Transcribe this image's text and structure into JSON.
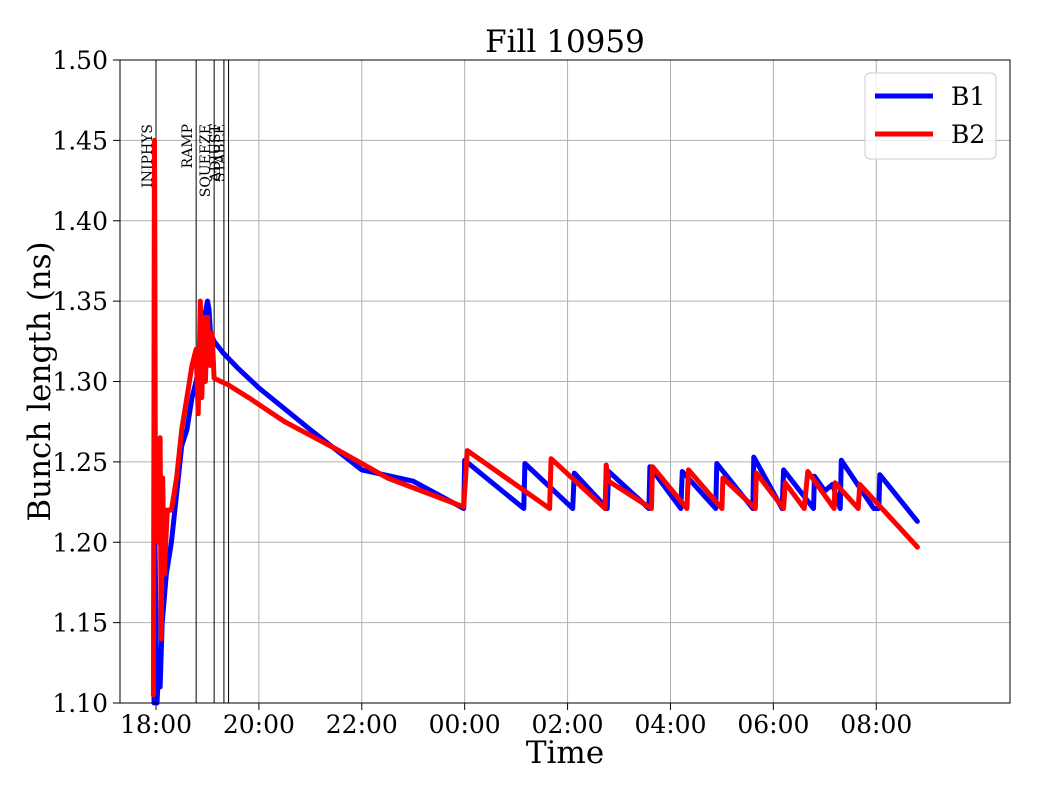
{
  "chart_data": {
    "type": "line",
    "title": "Fill 10959",
    "xlabel": "Time",
    "ylabel": "Bunch length (ns)",
    "x_unit": "hours (axis shows clock time starting 18:00, wrapping past midnight)",
    "xlim": [
      17.3,
      34.6
    ],
    "ylim": [
      1.1,
      1.5
    ],
    "x_ticks": [
      {
        "value": 18,
        "label": "18:00"
      },
      {
        "value": 20,
        "label": "20:00"
      },
      {
        "value": 22,
        "label": "22:00"
      },
      {
        "value": 24,
        "label": "00:00"
      },
      {
        "value": 26,
        "label": "02:00"
      },
      {
        "value": 28,
        "label": "04:00"
      },
      {
        "value": 30,
        "label": "06:00"
      },
      {
        "value": 32,
        "label": "08:00"
      }
    ],
    "y_ticks": [
      {
        "value": 1.1,
        "label": "1.10"
      },
      {
        "value": 1.15,
        "label": "1.15"
      },
      {
        "value": 1.2,
        "label": "1.20"
      },
      {
        "value": 1.25,
        "label": "1.25"
      },
      {
        "value": 1.3,
        "label": "1.30"
      },
      {
        "value": 1.35,
        "label": "1.35"
      },
      {
        "value": 1.4,
        "label": "1.40"
      },
      {
        "value": 1.45,
        "label": "1.45"
      },
      {
        "value": 1.5,
        "label": "1.50"
      }
    ],
    "grid": true,
    "legend_position": "top-right",
    "phases": [
      {
        "label": "INJPHYS",
        "x": 18.0
      },
      {
        "label": "RAMP",
        "x": 18.78
      },
      {
        "label": "SQUEEZE",
        "x": 19.13
      },
      {
        "label": "ADJUST",
        "x": 19.32
      },
      {
        "label": "STABLE",
        "x": 19.41
      }
    ],
    "series": [
      {
        "name": "B1",
        "color": "#0000ff",
        "points": [
          [
            17.96,
            1.1
          ],
          [
            17.97,
            1.44
          ],
          [
            17.98,
            1.2
          ],
          [
            18.02,
            1.1
          ],
          [
            18.05,
            1.12
          ],
          [
            18.08,
            1.11
          ],
          [
            18.12,
            1.15
          ],
          [
            18.2,
            1.18
          ],
          [
            18.3,
            1.2
          ],
          [
            18.4,
            1.23
          ],
          [
            18.5,
            1.26
          ],
          [
            18.6,
            1.27
          ],
          [
            18.7,
            1.29
          ],
          [
            18.78,
            1.3
          ],
          [
            18.84,
            1.31
          ],
          [
            18.88,
            1.33
          ],
          [
            18.94,
            1.34
          ],
          [
            19.0,
            1.35
          ],
          [
            19.03,
            1.345
          ],
          [
            19.06,
            1.33
          ],
          [
            19.13,
            1.325
          ],
          [
            19.3,
            1.318
          ],
          [
            19.6,
            1.308
          ],
          [
            20.0,
            1.296
          ],
          [
            21.0,
            1.27
          ],
          [
            22.0,
            1.245
          ],
          [
            23.0,
            1.238
          ],
          [
            23.98,
            1.221
          ],
          [
            24.0,
            1.251
          ],
          [
            25.15,
            1.221
          ],
          [
            25.17,
            1.249
          ],
          [
            26.1,
            1.221
          ],
          [
            26.13,
            1.243
          ],
          [
            26.77,
            1.221
          ],
          [
            26.8,
            1.244
          ],
          [
            27.58,
            1.221
          ],
          [
            27.6,
            1.247
          ],
          [
            28.2,
            1.221
          ],
          [
            28.23,
            1.244
          ],
          [
            28.88,
            1.221
          ],
          [
            28.9,
            1.249
          ],
          [
            29.6,
            1.221
          ],
          [
            29.62,
            1.253
          ],
          [
            30.17,
            1.221
          ],
          [
            30.2,
            1.245
          ],
          [
            30.78,
            1.221
          ],
          [
            30.8,
            1.241
          ],
          [
            31.0,
            1.232
          ],
          [
            31.15,
            1.236
          ],
          [
            31.3,
            1.221
          ],
          [
            31.32,
            1.251
          ],
          [
            31.95,
            1.221
          ],
          [
            32.05,
            1.221
          ],
          [
            32.07,
            1.242
          ],
          [
            32.8,
            1.213
          ]
        ]
      },
      {
        "name": "B2",
        "color": "#ff0000",
        "points": [
          [
            17.95,
            1.105
          ],
          [
            17.97,
            1.45
          ],
          [
            17.99,
            1.21
          ],
          [
            18.02,
            1.24
          ],
          [
            18.05,
            1.2
          ],
          [
            18.08,
            1.265
          ],
          [
            18.1,
            1.14
          ],
          [
            18.13,
            1.24
          ],
          [
            18.16,
            1.18
          ],
          [
            18.22,
            1.22
          ],
          [
            18.3,
            1.22
          ],
          [
            18.4,
            1.24
          ],
          [
            18.5,
            1.27
          ],
          [
            18.6,
            1.29
          ],
          [
            18.7,
            1.31
          ],
          [
            18.78,
            1.32
          ],
          [
            18.82,
            1.28
          ],
          [
            18.86,
            1.35
          ],
          [
            18.89,
            1.29
          ],
          [
            18.93,
            1.34
          ],
          [
            18.96,
            1.3
          ],
          [
            19.0,
            1.34
          ],
          [
            19.05,
            1.31
          ],
          [
            19.09,
            1.33
          ],
          [
            19.13,
            1.302
          ],
          [
            19.4,
            1.298
          ],
          [
            19.8,
            1.29
          ],
          [
            20.5,
            1.275
          ],
          [
            21.5,
            1.258
          ],
          [
            22.5,
            1.24
          ],
          [
            23.98,
            1.222
          ],
          [
            24.05,
            1.257
          ],
          [
            25.65,
            1.221
          ],
          [
            25.68,
            1.252
          ],
          [
            26.73,
            1.221
          ],
          [
            26.75,
            1.248
          ],
          [
            26.8,
            1.238
          ],
          [
            27.63,
            1.221
          ],
          [
            27.65,
            1.247
          ],
          [
            28.32,
            1.221
          ],
          [
            28.35,
            1.245
          ],
          [
            29.0,
            1.221
          ],
          [
            29.02,
            1.24
          ],
          [
            29.65,
            1.221
          ],
          [
            29.67,
            1.243
          ],
          [
            30.2,
            1.221
          ],
          [
            30.23,
            1.237
          ],
          [
            30.6,
            1.221
          ],
          [
            30.67,
            1.244
          ],
          [
            31.18,
            1.221
          ],
          [
            31.2,
            1.237
          ],
          [
            31.65,
            1.221
          ],
          [
            31.68,
            1.236
          ],
          [
            32.8,
            1.197
          ]
        ]
      }
    ]
  }
}
